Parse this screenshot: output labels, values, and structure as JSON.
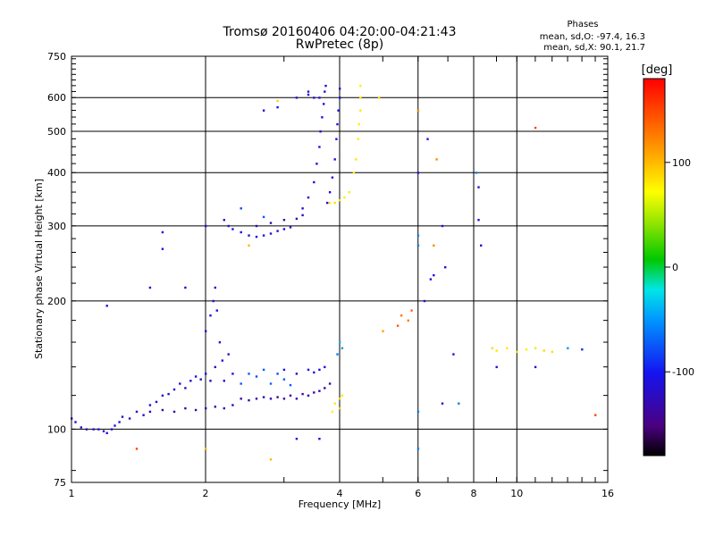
{
  "chart_data": {
    "type": "scatter",
    "title": "Tromsø 20160406 04:20:00-04:21:43",
    "subtitle": "RwPretec (8p)",
    "xlabel": "Frequency [MHz]",
    "ylabel": "Stationary phase Virtual Height [km]",
    "x_scale": "log",
    "y_scale": "log",
    "xlim": [
      1,
      16
    ],
    "ylim": [
      75,
      750
    ],
    "x_ticks": [
      1,
      2,
      4,
      6,
      8,
      10,
      16
    ],
    "y_ticks": [
      75,
      100,
      200,
      300,
      400,
      500,
      600,
      750
    ],
    "grid": true,
    "stats": {
      "header": "Phases",
      "o_line": "mean, sd,O: -97.4, 16.3",
      "x_line": "mean, sd,X:  90.1, 21.7"
    },
    "colorbar": {
      "label": "[deg]",
      "range": [
        -180,
        180
      ],
      "ticks": [
        100,
        0,
        -100
      ],
      "tick_labels": [
        "100",
        "0",
        "-100"
      ]
    },
    "series": [
      {
        "points": [
          [
            1.0,
            106,
            -110
          ],
          [
            1.02,
            104,
            -115
          ],
          [
            1.05,
            101,
            -120
          ],
          [
            1.08,
            100,
            -125
          ],
          [
            1.12,
            100,
            -118
          ],
          [
            1.15,
            100,
            -112
          ],
          [
            1.18,
            99,
            -120
          ],
          [
            1.2,
            98,
            -105
          ],
          [
            1.23,
            100,
            -110
          ],
          [
            1.25,
            102,
            -108
          ],
          [
            1.28,
            104,
            -112
          ],
          [
            1.3,
            107,
            -118
          ],
          [
            1.35,
            106,
            -120
          ],
          [
            1.4,
            110,
            -110
          ],
          [
            1.45,
            108,
            -125
          ],
          [
            1.5,
            114,
            -105
          ],
          [
            1.55,
            116,
            -110
          ],
          [
            1.6,
            120,
            -115
          ],
          [
            1.65,
            121,
            -118
          ],
          [
            1.7,
            124,
            -110
          ],
          [
            1.75,
            128,
            -112
          ],
          [
            1.8,
            125,
            -108
          ],
          [
            1.85,
            130,
            -115
          ],
          [
            1.9,
            133,
            -110
          ],
          [
            1.95,
            131,
            -120
          ],
          [
            2.0,
            135,
            -112
          ],
          [
            2.05,
            130,
            -118
          ],
          [
            2.1,
            140,
            -120
          ],
          [
            1.5,
            110,
            -130
          ],
          [
            1.6,
            111,
            -128
          ],
          [
            1.7,
            110,
            -132
          ],
          [
            1.8,
            112,
            -125
          ],
          [
            1.9,
            111,
            -130
          ],
          [
            2.0,
            112,
            -128
          ],
          [
            2.1,
            113,
            -132
          ],
          [
            2.2,
            112,
            -125
          ],
          [
            2.3,
            114,
            -130
          ],
          [
            2.0,
            170,
            -110
          ],
          [
            2.05,
            185,
            -108
          ],
          [
            2.08,
            200,
            -112
          ],
          [
            2.1,
            215,
            -115
          ],
          [
            2.12,
            190,
            -110
          ],
          [
            2.15,
            160,
            -105
          ],
          [
            2.18,
            145,
            -112
          ],
          [
            2.2,
            130,
            -110
          ],
          [
            2.25,
            150,
            -108
          ],
          [
            2.3,
            135,
            -115
          ],
          [
            2.4,
            128,
            -75
          ],
          [
            2.5,
            135,
            -72
          ],
          [
            2.6,
            133,
            -80
          ],
          [
            2.7,
            138,
            -75
          ],
          [
            2.8,
            128,
            -70
          ],
          [
            2.9,
            135,
            -78
          ],
          [
            3.0,
            131,
            -72
          ],
          [
            3.1,
            127,
            -74
          ],
          [
            2.4,
            118,
            -135
          ],
          [
            2.5,
            117,
            -132
          ],
          [
            2.6,
            118,
            -138
          ],
          [
            2.7,
            119,
            -135
          ],
          [
            2.8,
            118,
            -130
          ],
          [
            2.9,
            119,
            -140
          ],
          [
            3.0,
            118,
            -135
          ],
          [
            3.1,
            120,
            -138
          ],
          [
            3.2,
            118,
            -132
          ],
          [
            3.3,
            121,
            -136
          ],
          [
            3.4,
            120,
            -135
          ],
          [
            3.5,
            122,
            -138
          ],
          [
            3.6,
            123,
            -132
          ],
          [
            3.7,
            125,
            -135
          ],
          [
            3.8,
            128,
            -138
          ],
          [
            3.0,
            138,
            -110
          ],
          [
            3.2,
            135,
            -112
          ],
          [
            3.4,
            138,
            -108
          ],
          [
            3.5,
            136,
            -112
          ],
          [
            3.6,
            138,
            -115
          ],
          [
            3.7,
            140,
            -110
          ],
          [
            3.9,
            115,
            80
          ],
          [
            4.0,
            118,
            85
          ],
          [
            4.05,
            120,
            82
          ],
          [
            4.0,
            112,
            90
          ],
          [
            3.85,
            110,
            78
          ],
          [
            3.95,
            150,
            -60
          ],
          [
            4.0,
            160,
            -40
          ],
          [
            4.05,
            155,
            -50
          ],
          [
            2.2,
            310,
            -105
          ],
          [
            2.25,
            300,
            -108
          ],
          [
            2.3,
            295,
            -110
          ],
          [
            2.4,
            290,
            -112
          ],
          [
            2.5,
            285,
            -108
          ],
          [
            2.6,
            283,
            -115
          ],
          [
            2.7,
            285,
            -110
          ],
          [
            2.8,
            288,
            -112
          ],
          [
            2.9,
            292,
            -118
          ],
          [
            3.0,
            295,
            -110
          ],
          [
            3.1,
            298,
            -115
          ],
          [
            2.4,
            330,
            -80
          ],
          [
            2.7,
            315,
            -75
          ],
          [
            2.6,
            300,
            -130
          ],
          [
            2.8,
            305,
            -135
          ],
          [
            3.0,
            310,
            -132
          ],
          [
            3.2,
            312,
            -130
          ],
          [
            3.3,
            318,
            -128
          ],
          [
            3.3,
            330,
            -112
          ],
          [
            3.4,
            350,
            -110
          ],
          [
            3.5,
            380,
            -108
          ],
          [
            3.55,
            420,
            -112
          ],
          [
            3.6,
            460,
            -110
          ],
          [
            3.62,
            500,
            -108
          ],
          [
            3.65,
            540,
            -112
          ],
          [
            3.68,
            580,
            -110
          ],
          [
            3.7,
            620,
            -108
          ],
          [
            3.72,
            640,
            -110
          ],
          [
            3.6,
            600,
            -115
          ],
          [
            3.5,
            600,
            -112
          ],
          [
            3.4,
            620,
            -110
          ],
          [
            3.75,
            340,
            -118
          ],
          [
            3.8,
            360,
            -115
          ],
          [
            3.85,
            390,
            -112
          ],
          [
            3.9,
            430,
            -110
          ],
          [
            3.93,
            480,
            -112
          ],
          [
            3.95,
            520,
            -108
          ],
          [
            3.97,
            560,
            -110
          ],
          [
            4.0,
            600,
            -112
          ],
          [
            4.0,
            630,
            -108
          ],
          [
            3.8,
            340,
            80
          ],
          [
            3.9,
            340,
            85
          ],
          [
            4.0,
            345,
            82
          ],
          [
            4.1,
            350,
            78
          ],
          [
            4.2,
            360,
            80
          ],
          [
            4.3,
            400,
            78
          ],
          [
            4.35,
            430,
            82
          ],
          [
            4.4,
            480,
            80
          ],
          [
            4.42,
            520,
            78
          ],
          [
            4.45,
            560,
            82
          ],
          [
            4.45,
            600,
            80
          ],
          [
            4.45,
            640,
            78
          ],
          [
            2.7,
            560,
            -110
          ],
          [
            2.9,
            570,
            -108
          ],
          [
            3.2,
            600,
            -112
          ],
          [
            3.4,
            610,
            -110
          ],
          [
            2.9,
            590,
            90
          ],
          [
            4.9,
            600,
            85
          ],
          [
            5.5,
            185,
            130
          ],
          [
            5.7,
            180,
            125
          ],
          [
            5.8,
            190,
            135
          ],
          [
            5.4,
            175,
            140
          ],
          [
            5.0,
            170,
            110
          ],
          [
            8.8,
            155,
            85
          ],
          [
            9.0,
            153,
            82
          ],
          [
            9.5,
            155,
            80
          ],
          [
            10.0,
            152,
            85
          ],
          [
            10.5,
            154,
            80
          ],
          [
            11.0,
            155,
            82
          ],
          [
            11.5,
            153,
            88
          ],
          [
            12.0,
            152,
            85
          ],
          [
            13.0,
            155,
            -50
          ],
          [
            14.0,
            154,
            -90
          ],
          [
            9.0,
            140,
            -110
          ],
          [
            11.0,
            140,
            -110
          ],
          [
            6.0,
            270,
            -60
          ],
          [
            6.0,
            400,
            -110
          ],
          [
            6.2,
            200,
            -110
          ],
          [
            6.5,
            270,
            120
          ],
          [
            6.6,
            430,
            120
          ],
          [
            6.8,
            300,
            -110
          ],
          [
            7.2,
            150,
            -110
          ],
          [
            6.5,
            230,
            -110
          ],
          [
            6.8,
            115,
            -110
          ],
          [
            7.4,
            115,
            -60
          ],
          [
            8.1,
            400,
            -60
          ],
          [
            8.2,
            370,
            -110
          ],
          [
            8.3,
            270,
            -110
          ],
          [
            8.2,
            310,
            -110
          ],
          [
            6.0,
            110,
            -60
          ],
          [
            6.0,
            90,
            -60
          ],
          [
            6.0,
            560,
            120
          ],
          [
            6.3,
            480,
            -110
          ],
          [
            6.4,
            225,
            -110
          ],
          [
            6.9,
            240,
            -110
          ],
          [
            6.0,
            285,
            -60
          ],
          [
            1.4,
            90,
            150
          ],
          [
            2.0,
            90,
            100
          ],
          [
            2.8,
            85,
            100
          ],
          [
            3.2,
            95,
            -110
          ],
          [
            3.6,
            95,
            -110
          ],
          [
            2.5,
            270,
            100
          ],
          [
            2.0,
            300,
            -110
          ],
          [
            1.6,
            290,
            -110
          ],
          [
            1.5,
            215,
            -110
          ],
          [
            1.2,
            195,
            -110
          ],
          [
            1.8,
            215,
            -110
          ],
          [
            1.6,
            265,
            -110
          ],
          [
            11.0,
            510,
            150
          ],
          [
            15.0,
            108,
            150
          ]
        ]
      }
    ]
  }
}
